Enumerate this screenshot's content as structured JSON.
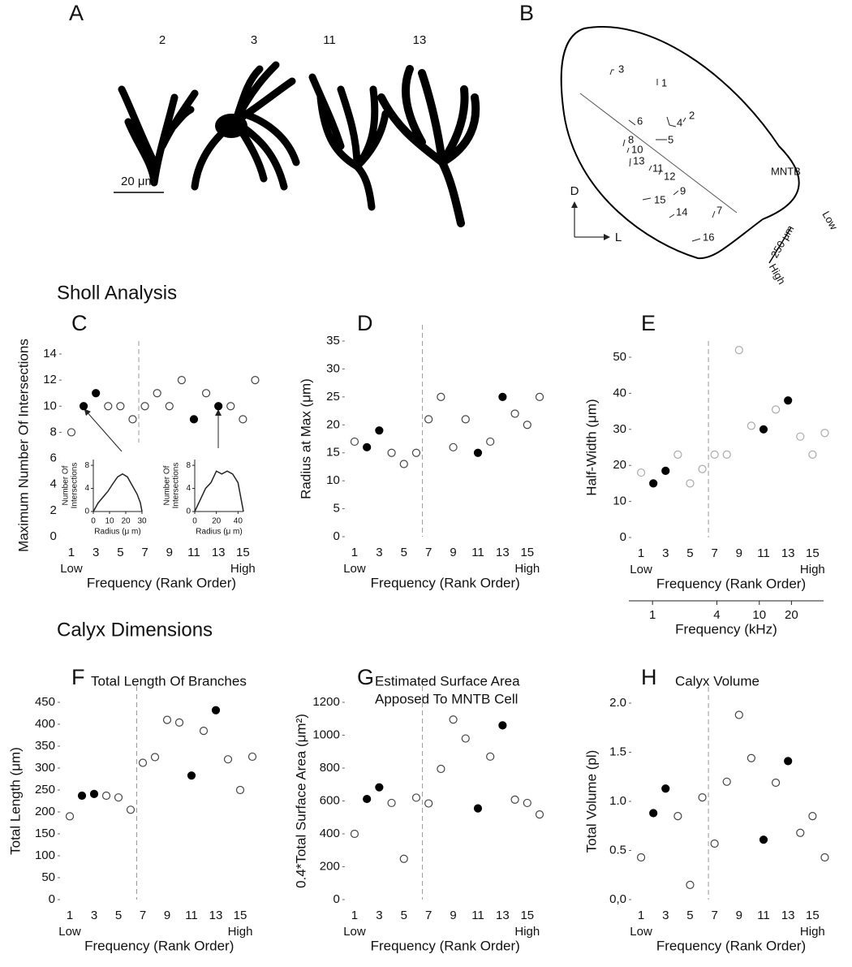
{
  "figure": {
    "panel_letters": [
      "A",
      "B"
    ],
    "section_titles": [
      "Sholl Analysis",
      "Calyx Dimensions"
    ],
    "panel_a": {
      "cell_labels": [
        "2",
        "3",
        "11",
        "13"
      ],
      "scale_bar": "20 μm"
    },
    "panel_b": {
      "cell_labels": [
        "3",
        "1",
        "6",
        "2",
        "4",
        "5",
        "8",
        "10",
        "13",
        "11",
        "12",
        "9",
        "15",
        "14",
        "7",
        "16"
      ],
      "region_label": "MNTB",
      "axis_labels": [
        "D",
        "L"
      ],
      "scale_bar": "250 μm",
      "gradient_labels": [
        "Low",
        "High"
      ]
    }
  },
  "chart_data": [
    {
      "type": "scatter",
      "panel": "C",
      "ylabel": "Maximum Number Of Intersections",
      "xlabel": "Frequency (Rank Order)",
      "x": [
        1,
        2,
        3,
        4,
        5,
        6,
        7,
        8,
        9,
        10,
        11,
        12,
        13,
        14,
        15,
        16
      ],
      "values": [
        8,
        10,
        11,
        10,
        10,
        9,
        10,
        11,
        10,
        12,
        9,
        11,
        10,
        10,
        9,
        12
      ],
      "filled": [
        false,
        true,
        true,
        false,
        false,
        false,
        false,
        false,
        false,
        false,
        true,
        false,
        true,
        false,
        false,
        false
      ],
      "xlim": [
        0.2,
        16.5
      ],
      "xticks": [
        1,
        3,
        5,
        7,
        9,
        11,
        13,
        15
      ],
      "x_end_labels": [
        "Low",
        "High"
      ],
      "ylim": [
        0,
        14
      ],
      "yticks": [
        0,
        2,
        4,
        6,
        8,
        10,
        12,
        14
      ],
      "divider_x": 6.5,
      "colors": {
        "filled": "#000000",
        "open": "#444444"
      }
    },
    {
      "type": "scatter",
      "panel": "D",
      "ylabel": "Radius at Max (μm)",
      "xlabel": "Frequency (Rank Order)",
      "x": [
        1,
        2,
        3,
        4,
        5,
        6,
        7,
        8,
        9,
        10,
        11,
        12,
        13,
        14,
        15,
        16
      ],
      "values": [
        17,
        16,
        19,
        15,
        13,
        15,
        21,
        25,
        16,
        21,
        15,
        17,
        25,
        22,
        20,
        25
      ],
      "filled": [
        false,
        true,
        true,
        false,
        false,
        false,
        false,
        false,
        false,
        false,
        true,
        false,
        true,
        false,
        false,
        false
      ],
      "xlim": [
        0.2,
        16.5
      ],
      "xticks": [
        1,
        3,
        5,
        7,
        9,
        11,
        13,
        15
      ],
      "x_end_labels": [
        "Low",
        "High"
      ],
      "ylim": [
        0,
        35
      ],
      "yticks": [
        0,
        5,
        10,
        15,
        20,
        25,
        30,
        35
      ],
      "divider_x": 6.5,
      "colors": {
        "filled": "#000000",
        "open": "#444444"
      }
    },
    {
      "type": "scatter",
      "panel": "E",
      "ylabel": "Half-Width (μm)",
      "xlabel": "Frequency (Rank Order)",
      "x": [
        1,
        2,
        3,
        4,
        5,
        6,
        7,
        8,
        9,
        10,
        11,
        12,
        13,
        14,
        15,
        16
      ],
      "values": [
        18,
        15,
        18.5,
        23,
        15,
        19,
        23,
        23,
        52,
        31,
        30,
        35.5,
        38,
        28,
        23,
        29
      ],
      "filled": [
        false,
        true,
        true,
        false,
        false,
        false,
        false,
        false,
        false,
        false,
        true,
        false,
        true,
        false,
        false,
        false
      ],
      "xlim": [
        0.2,
        16.5
      ],
      "xticks": [
        1,
        3,
        5,
        7,
        9,
        11,
        13,
        15
      ],
      "x_end_labels": [
        "Low",
        "High"
      ],
      "ylim": [
        0,
        50
      ],
      "yticks": [
        0,
        10,
        20,
        30,
        40,
        50
      ],
      "divider_x": 6.5,
      "colors": {
        "filled": "#000000",
        "open": "#aaaaaa"
      },
      "x2label": "Frequency (kHz)",
      "x2lim": [
        0.6,
        40
      ],
      "x2ticks": [
        1,
        4,
        10,
        20
      ],
      "x2log": true
    },
    {
      "type": "scatter",
      "panel": "F",
      "title": [
        "Total Length Of Branches"
      ],
      "ylabel": "Total Length (μm)",
      "xlabel": "Frequency (Rank Order)",
      "x": [
        1,
        2,
        3,
        4,
        5,
        6,
        7,
        8,
        9,
        10,
        11,
        12,
        13,
        14,
        15,
        16
      ],
      "values": [
        190,
        237,
        241,
        237,
        233,
        205,
        312,
        325,
        410,
        404,
        283,
        385,
        432,
        320,
        250,
        326
      ],
      "filled": [
        false,
        true,
        true,
        false,
        false,
        false,
        false,
        false,
        false,
        false,
        true,
        false,
        true,
        false,
        false,
        false
      ],
      "xlim": [
        0.2,
        16.5
      ],
      "xticks": [
        1,
        3,
        5,
        7,
        9,
        11,
        13,
        15
      ],
      "x_end_labels": [
        "Low",
        "High"
      ],
      "ylim": [
        0,
        450
      ],
      "yticks": [
        0,
        50,
        100,
        150,
        200,
        250,
        300,
        350,
        400,
        450
      ],
      "divider_x": 6.5,
      "colors": {
        "filled": "#000000",
        "open": "#444444"
      }
    },
    {
      "type": "scatter",
      "panel": "G",
      "title": [
        "Estimated Surface Area",
        "Apposed To MNTB Cell"
      ],
      "ylabel": "0.4*Total Surface Area (μm²)",
      "xlabel": "Frequency (Rank Order)",
      "x": [
        1,
        2,
        3,
        4,
        5,
        6,
        7,
        8,
        9,
        10,
        11,
        12,
        13,
        14,
        15,
        16
      ],
      "values": [
        400,
        612,
        683,
        588,
        248,
        620,
        585,
        795,
        1095,
        980,
        555,
        870,
        1060,
        608,
        588,
        518
      ],
      "filled": [
        false,
        true,
        true,
        false,
        false,
        false,
        false,
        false,
        false,
        false,
        true,
        false,
        true,
        false,
        false,
        false
      ],
      "xlim": [
        0.2,
        16.5
      ],
      "xticks": [
        1,
        3,
        5,
        7,
        9,
        11,
        13,
        15
      ],
      "x_end_labels": [
        "Low",
        "High"
      ],
      "ylim": [
        0,
        1200
      ],
      "yticks": [
        0,
        200,
        400,
        600,
        800,
        1000,
        1200
      ],
      "divider_x": 6.5,
      "colors": {
        "filled": "#000000",
        "open": "#444444"
      }
    },
    {
      "type": "scatter",
      "panel": "H",
      "title": [
        "Calyx Volume"
      ],
      "ylabel": "Total Volume (pl)",
      "xlabel": "Frequency (Rank Order)",
      "x": [
        1,
        2,
        3,
        4,
        5,
        6,
        7,
        8,
        9,
        10,
        11,
        12,
        13,
        14,
        15,
        16
      ],
      "values": [
        0.43,
        0.88,
        1.13,
        0.85,
        0.15,
        1.04,
        0.57,
        1.2,
        1.88,
        1.44,
        0.61,
        1.19,
        1.41,
        0.68,
        0.85,
        0.43
      ],
      "filled": [
        false,
        true,
        true,
        false,
        false,
        false,
        false,
        false,
        false,
        false,
        true,
        false,
        true,
        false,
        false,
        false
      ],
      "xlim": [
        0.2,
        16.5
      ],
      "xticks": [
        1,
        3,
        5,
        7,
        9,
        11,
        13,
        15
      ],
      "x_end_labels": [
        "Low",
        "High"
      ],
      "ylim": [
        0,
        2
      ],
      "yticks": [
        {
          "value": 0,
          "label": "0,0"
        },
        0.5,
        {
          "value": 1,
          "label": "1.0"
        },
        1.5,
        {
          "value": 2,
          "label": "2.0"
        }
      ],
      "divider_x": 6.5,
      "colors": {
        "filled": "#000000",
        "open": "#444444"
      }
    },
    {
      "type": "line",
      "ylabel": [
        "Number Of",
        "Intersections"
      ],
      "xlabel": "Radius (μ m)",
      "x": [
        0,
        3,
        6,
        9,
        12,
        15,
        18,
        21,
        24,
        27,
        29,
        30
      ],
      "values": [
        0,
        1.5,
        2.5,
        3.5,
        4.8,
        6,
        6.5,
        6,
        4.5,
        3,
        1.5,
        0
      ],
      "xlim": [
        0,
        30
      ],
      "xticks": [
        0,
        10,
        20,
        30
      ],
      "ylim": [
        0,
        9
      ],
      "yticks": [
        0,
        4,
        8
      ],
      "color": "#222222"
    },
    {
      "type": "line",
      "ylabel": [
        "Number Of",
        "Intersections"
      ],
      "xlabel": "Radius (μ m)",
      "x": [
        0,
        5,
        10,
        15,
        20,
        25,
        30,
        35,
        40,
        45
      ],
      "values": [
        0,
        2,
        4,
        5,
        7,
        6.5,
        7,
        6.5,
        5,
        0
      ],
      "xlim": [
        0,
        45
      ],
      "xticks": [
        0,
        20,
        40
      ],
      "ylim": [
        0,
        9
      ],
      "yticks": [
        0,
        4,
        8
      ],
      "color": "#222222"
    }
  ]
}
